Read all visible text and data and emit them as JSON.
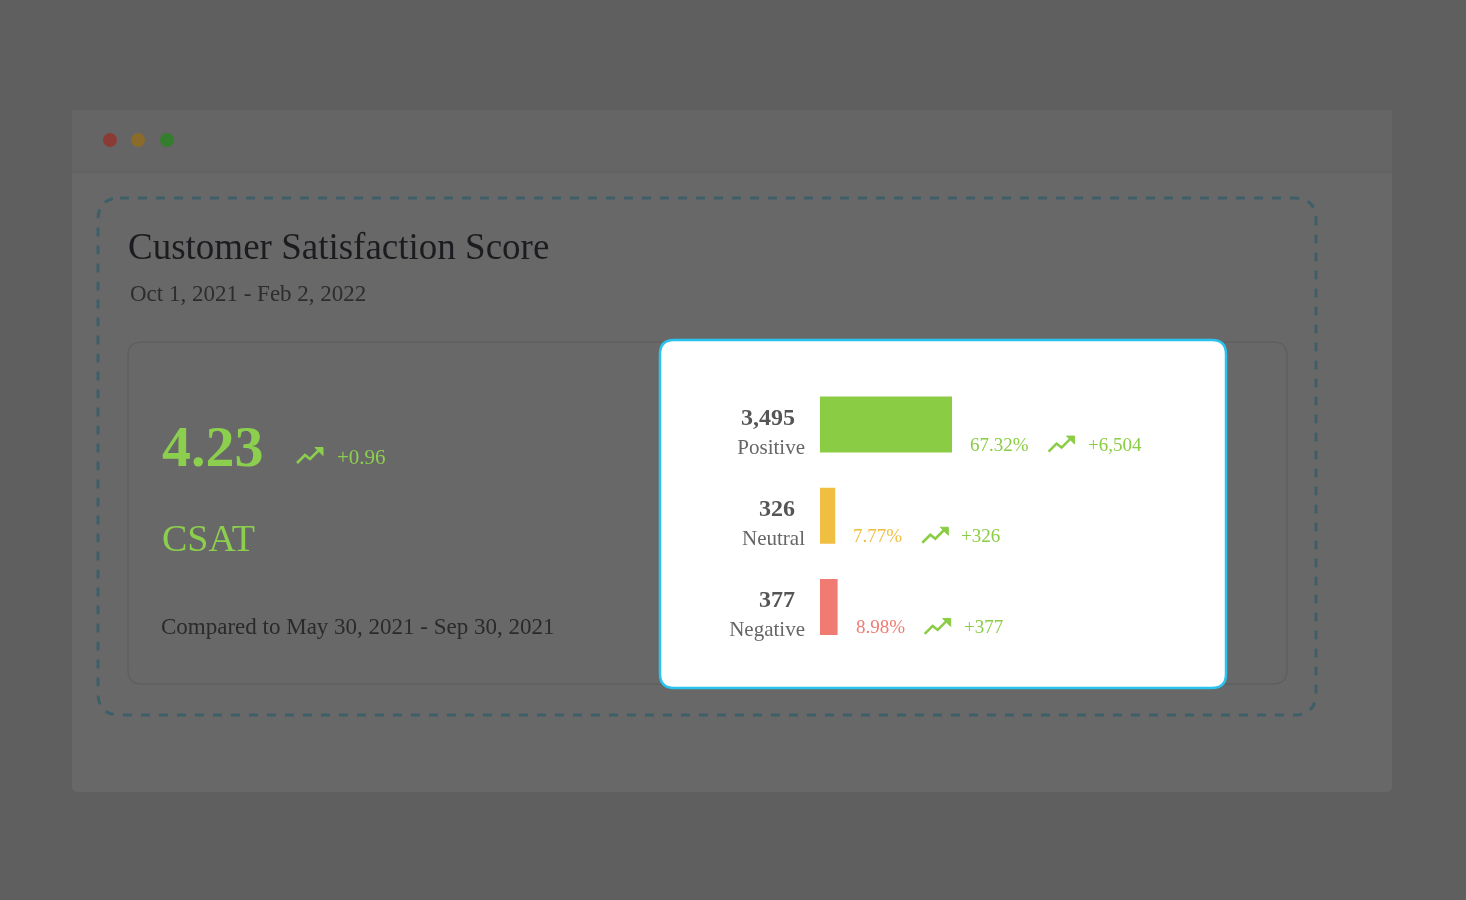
{
  "chart_data": [
    {
      "type": "other",
      "title": "Customer Satisfaction Score",
      "subtitle": "Oct 1, 2021 - Feb 2, 2022",
      "annotations": [
        "4.23",
        "+0.96",
        "CSAT",
        "Compared to May 30, 2021 - Sep 30, 2021"
      ]
    },
    {
      "type": "bar",
      "orientation": "horizontal",
      "categories": [
        "Positive",
        "Neutral",
        "Negative"
      ],
      "values": [
        67.32,
        7.77,
        8.98
      ],
      "colors": [
        "#8bcc45",
        "#f0be41",
        "#ef7b73"
      ],
      "value_labels": [
        "67.32%",
        "7.77%",
        "8.98%"
      ],
      "annotations": [
        "3,495",
        "+6,504",
        "326",
        "+326",
        "377",
        "+377"
      ],
      "tick_labels": "y"
    }
  ]
}
